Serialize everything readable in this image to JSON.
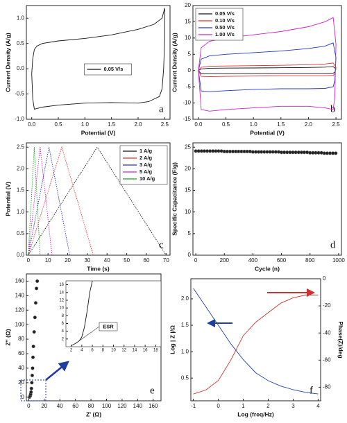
{
  "chart_data": [
    {
      "type": "line",
      "label": "a",
      "xlabel": "Potential (V)",
      "ylabel": "Current Density (A/g)",
      "legend": "center",
      "xlim": [
        -0.1,
        2.6
      ],
      "ylim": [
        -1.0,
        1.25
      ],
      "xticks": [
        {
          "value": 0,
          "label": "0.0"
        },
        {
          "value": 0.5,
          "label": "0.5"
        },
        {
          "value": 1,
          "label": "1.0"
        },
        {
          "value": 1.5,
          "label": "1.5"
        },
        {
          "value": 2,
          "label": "2.0"
        },
        {
          "value": 2.5,
          "label": "2.5"
        }
      ],
      "yticks": [
        {
          "value": -1,
          "label": "-1.0"
        },
        {
          "value": -0.5,
          "label": "-0.5"
        },
        {
          "value": 0,
          "label": "0.0"
        },
        {
          "value": 0.5,
          "label": "0.5"
        },
        {
          "value": 1,
          "label": "1.0"
        }
      ],
      "series": [
        {
          "name": "0.05 V/s",
          "color": "#111111",
          "x": [
            0,
            0.02,
            0.05,
            0.1,
            0.2,
            0.5,
            1.0,
            1.5,
            2.0,
            2.3,
            2.45,
            2.5,
            2.5,
            2.48,
            2.45,
            2.4,
            2.2,
            2.0,
            1.5,
            1.0,
            0.5,
            0.2,
            0.05,
            0.02,
            0
          ],
          "values": [
            -0.1,
            0.2,
            0.38,
            0.45,
            0.5,
            0.55,
            0.6,
            0.67,
            0.78,
            0.88,
            1.0,
            1.2,
            0.6,
            0.0,
            -0.4,
            -0.55,
            -0.65,
            -0.68,
            -0.67,
            -0.68,
            -0.72,
            -0.76,
            -0.8,
            -0.6,
            -0.1
          ]
        }
      ]
    },
    {
      "type": "line",
      "label": "b",
      "xlabel": "Potential (V)",
      "ylabel": "Current Density (A/g)",
      "legend": "upper left",
      "xlim": [
        -0.1,
        2.6
      ],
      "ylim": [
        -15,
        20
      ],
      "xticks": [
        {
          "value": 0,
          "label": "0.0"
        },
        {
          "value": 0.5,
          "label": "0.5"
        },
        {
          "value": 1,
          "label": "1.0"
        },
        {
          "value": 1.5,
          "label": "1.5"
        },
        {
          "value": 2,
          "label": "2.0"
        },
        {
          "value": 2.5,
          "label": "2.5"
        }
      ],
      "yticks": [
        -15,
        -10,
        -5,
        0,
        5,
        10,
        15,
        20
      ],
      "x": [
        0,
        0.05,
        0.2,
        0.5,
        1.0,
        1.5,
        2.0,
        2.3,
        2.45,
        2.5,
        2.48,
        2.45,
        2.3,
        2.0,
        1.5,
        1.0,
        0.5,
        0.2,
        0.05,
        0
      ],
      "series": [
        {
          "name": "0.05 V/s",
          "color": "#111111",
          "values": [
            0,
            0.5,
            0.7,
            0.75,
            0.8,
            0.85,
            0.95,
            1.05,
            1.2,
            0.5,
            -0.5,
            -0.8,
            -0.85,
            -0.85,
            -0.85,
            -0.9,
            -0.95,
            -1.0,
            -1.0,
            0
          ]
        },
        {
          "name": "0.10 V/s",
          "color": "#e0302a",
          "values": [
            0,
            1.0,
            1.3,
            1.4,
            1.5,
            1.6,
            1.8,
            2.0,
            2.3,
            1.0,
            -1.0,
            -1.5,
            -1.6,
            -1.6,
            -1.6,
            -1.7,
            -1.8,
            -1.9,
            -1.8,
            0
          ]
        },
        {
          "name": "0.50 V/s",
          "color": "#2233cc",
          "values": [
            0,
            3.5,
            4.5,
            5.0,
            5.5,
            6.0,
            6.8,
            7.5,
            8.5,
            4.0,
            -3.0,
            -5.0,
            -5.5,
            -5.6,
            -5.6,
            -5.8,
            -6.2,
            -6.5,
            -6.3,
            0
          ]
        },
        {
          "name": "1.00 V/s",
          "color": "#d020c8",
          "values": [
            0,
            7,
            9,
            10,
            11,
            12,
            13.5,
            15,
            16.3,
            8,
            -8,
            -12,
            -11.5,
            -11,
            -11,
            -11.5,
            -12,
            -12.5,
            -12,
            0
          ]
        }
      ]
    },
    {
      "type": "line",
      "label": "c",
      "xlabel": "Time (s)",
      "ylabel": "Potential (V)",
      "legend": "upper right",
      "linestyle": "dotted",
      "xlim": [
        -1,
        72
      ],
      "ylim": [
        0,
        2.6
      ],
      "xticks": [
        0,
        10,
        20,
        30,
        40,
        50,
        60,
        70
      ],
      "yticks": [
        {
          "value": 0,
          "label": "0.0"
        },
        {
          "value": 0.5,
          "label": "0.5"
        },
        {
          "value": 1,
          "label": "1.0"
        },
        {
          "value": 1.5,
          "label": "1.5"
        },
        {
          "value": 2,
          "label": "2.0"
        },
        {
          "value": 2.5,
          "label": "2.5"
        }
      ],
      "series": [
        {
          "name": "1 A/g",
          "color": "#111111",
          "x": [
            0,
            35,
            70
          ],
          "values": [
            0,
            2.5,
            0
          ]
        },
        {
          "name": "2 A/g",
          "color": "#e0302a",
          "x": [
            0,
            17,
            33
          ],
          "values": [
            0,
            2.5,
            0
          ]
        },
        {
          "name": "3 A/g",
          "color": "#2233cc",
          "x": [
            0,
            10.5,
            21
          ],
          "values": [
            0,
            2.5,
            0
          ]
        },
        {
          "name": "5 A/g",
          "color": "#d020c8",
          "x": [
            0,
            6,
            12
          ],
          "values": [
            0,
            2.5,
            0
          ]
        },
        {
          "name": "10 A/g",
          "color": "#1a9a1a",
          "x": [
            0,
            3,
            6
          ],
          "values": [
            0,
            2.5,
            0
          ]
        }
      ]
    },
    {
      "type": "scatter",
      "label": "d",
      "xlabel": "Cycle (n)",
      "ylabel": "Specific Capacitance (F/g)",
      "xlim": [
        -20,
        1020
      ],
      "ylim": [
        0,
        26
      ],
      "xticks": [
        0,
        200,
        400,
        600,
        800,
        1000
      ],
      "yticks": [
        0,
        5,
        10,
        15,
        20,
        25
      ],
      "series": [
        {
          "color": "#222222",
          "x": [
            0,
            20,
            40,
            60,
            80,
            100,
            120,
            140,
            160,
            180,
            200,
            220,
            240,
            260,
            280,
            300,
            320,
            340,
            360,
            380,
            400,
            420,
            440,
            460,
            480,
            500,
            520,
            540,
            560,
            580,
            600,
            620,
            640,
            660,
            680,
            700,
            720,
            740,
            760,
            780,
            800,
            820,
            840,
            860,
            880,
            900,
            920,
            940,
            960,
            980
          ],
          "values": [
            24.1,
            24.1,
            24.1,
            24.1,
            24.1,
            24.1,
            24.1,
            24.1,
            24.1,
            24.1,
            24.0,
            24.0,
            24.0,
            24.0,
            24.0,
            24.0,
            24.0,
            24.0,
            24.0,
            24.0,
            23.9,
            23.9,
            23.9,
            23.9,
            23.9,
            23.9,
            23.9,
            23.9,
            23.9,
            23.9,
            23.8,
            23.8,
            23.8,
            23.8,
            23.8,
            23.8,
            23.8,
            23.8,
            23.8,
            23.8,
            23.7,
            23.7,
            23.7,
            23.7,
            23.7,
            23.6,
            23.6,
            23.6,
            23.6,
            23.6
          ]
        }
      ]
    },
    {
      "type": "scatter",
      "label": "e",
      "xlabel": "Z' (Ω)",
      "ylabel": "Z'' (Ω)",
      "xlim": [
        -3,
        170
      ],
      "ylim": [
        -5,
        170
      ],
      "xticks": [
        0,
        20,
        40,
        60,
        80,
        100,
        120,
        140,
        160
      ],
      "yticks": [
        0,
        20,
        40,
        60,
        80,
        100,
        120,
        140,
        160
      ],
      "series": [
        {
          "color": "#222222",
          "x": [
            1,
            1.5,
            2,
            2.5,
            3,
            3.5,
            4,
            4.5,
            5,
            5.5,
            6,
            7,
            8,
            9,
            10,
            11
          ],
          "values": [
            0,
            1,
            2,
            4,
            7,
            12,
            20,
            30,
            40,
            55,
            70,
            90,
            110,
            130,
            150,
            160
          ]
        }
      ]
    },
    {
      "type": "line",
      "label": "f",
      "xlabel": "Log (freq/Hz)",
      "ylabel": "Log | Z |/Ω",
      "y2label": "Phase(Z)/deg",
      "xlim": [
        -1.1,
        4.1
      ],
      "ylim": [
        0.07,
        2.38
      ],
      "y2lim": [
        -90,
        0
      ],
      "xticks": [
        -1,
        0,
        1,
        2,
        3,
        4
      ],
      "yticks": [
        {
          "value": 0.5,
          "label": "0.5"
        },
        {
          "value": 1,
          "label": "1.0"
        },
        {
          "value": 1.5,
          "label": "1.5"
        },
        {
          "value": 2,
          "label": "2.0"
        }
      ],
      "y2ticks": [
        0,
        -20,
        -40,
        -60,
        -80
      ],
      "x": [
        -1,
        -0.5,
        0,
        0.5,
        1,
        1.5,
        2,
        2.5,
        3,
        3.5,
        4
      ],
      "series": [
        {
          "color": "#1f3fa0",
          "values": [
            2.2,
            1.85,
            1.5,
            1.15,
            0.85,
            0.6,
            0.45,
            0.35,
            0.28,
            0.23,
            0.2
          ]
        },
        {
          "color": "#d03030",
          "axis": "y2",
          "values": [
            -85,
            -82,
            -75,
            -60,
            -42,
            -32,
            -25,
            -18,
            -14,
            -12,
            -12
          ]
        }
      ]
    },
    {
      "type": "line",
      "inset": true,
      "annotation": "ESR",
      "xlim": [
        1,
        19
      ],
      "ylim": [
        0,
        17
      ],
      "xticks": [
        2,
        4,
        6,
        8,
        10,
        12,
        14,
        16,
        18
      ],
      "yticks": [
        2,
        4,
        6,
        8,
        10,
        12,
        14,
        16
      ],
      "series": [
        {
          "color": "#111111",
          "x": [
            2,
            2.5,
            3,
            3.5,
            4,
            4.5,
            5,
            5.5,
            6
          ],
          "values": [
            0.3,
            0.6,
            1,
            1.5,
            2.5,
            5,
            9,
            14,
            17
          ]
        }
      ]
    }
  ]
}
